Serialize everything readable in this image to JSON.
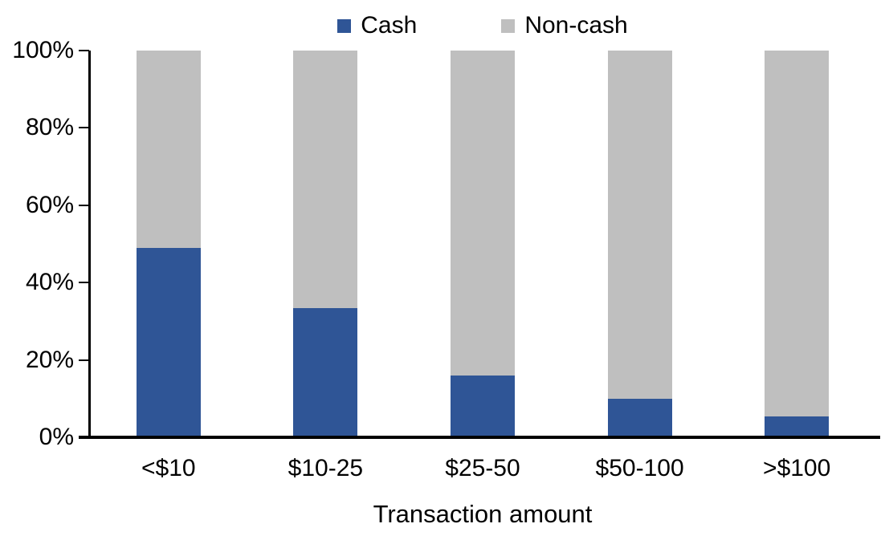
{
  "chart_data": {
    "type": "bar",
    "stacked": true,
    "percent_stacked": true,
    "title": "",
    "xlabel": "Transaction amount",
    "ylabel": "",
    "categories": [
      "<$10",
      "$10-25",
      "$25-50",
      "$50-100",
      ">$100"
    ],
    "series": [
      {
        "name": "Cash",
        "color": "#2F5596",
        "values": [
          49,
          33.5,
          16,
          10,
          5.5
        ]
      },
      {
        "name": "Non-cash",
        "color": "#BFBFBF",
        "values": [
          51,
          66.5,
          84,
          90,
          94.5
        ]
      }
    ],
    "ylim": [
      0,
      100
    ],
    "ytick_step": 20,
    "ytick_labels": [
      "0%",
      "20%",
      "40%",
      "60%",
      "80%",
      "100%"
    ],
    "legend_position": "top-center",
    "grid": false,
    "axis_color": "#000000"
  }
}
